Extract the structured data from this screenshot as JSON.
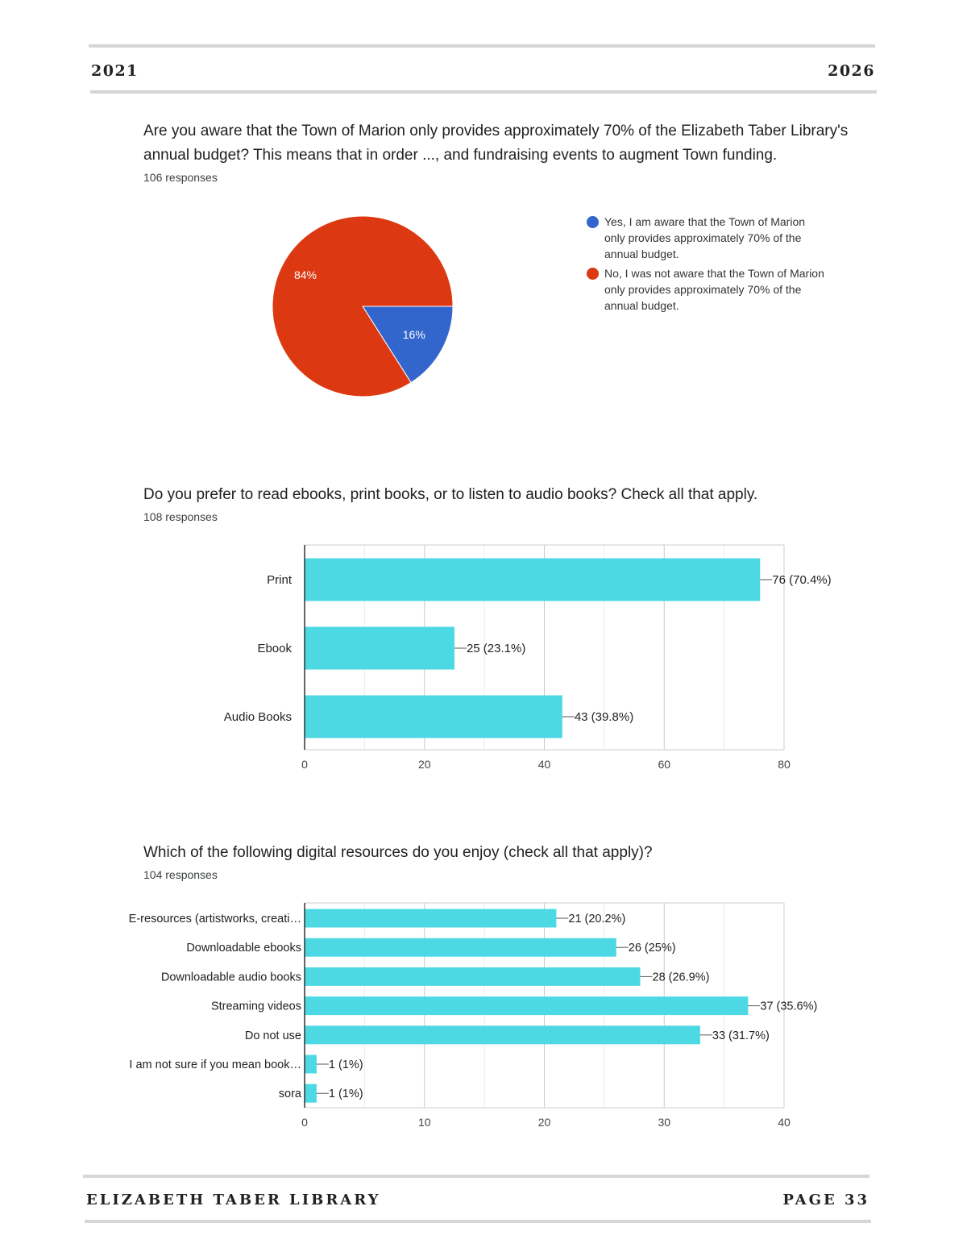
{
  "header": {
    "left": "2021",
    "right": "2026"
  },
  "footer": {
    "left": "ELIZABETH TABER LIBRARY",
    "right": "PAGE 33"
  },
  "questions": [
    {
      "title": "Are you aware that the Town of Marion only provides approximately 70% of the Elizabeth Taber Library's annual budget? This means that in order ..., and fundraising events to augment Town funding.",
      "responses": "106 responses"
    },
    {
      "title": "Do you prefer to read ebooks, print books, or to listen to audio books? Check all that apply.",
      "responses": "108 responses"
    },
    {
      "title": "Which of the following digital resources do you enjoy (check all that apply)?",
      "responses": "104 responses"
    }
  ],
  "chart_data": [
    {
      "type": "pie",
      "slices": [
        {
          "label": "Yes, I am aware that the Town of Marion only provides approximately 70% of the annual budget.",
          "value": 16,
          "display": "16%",
          "color": "#3366cc"
        },
        {
          "label": "No, I was not aware that the Town of Marion only provides approximately 70% of the annual budget.",
          "value": 84,
          "display": "84%",
          "color": "#dc3912"
        }
      ],
      "legend_position": "right"
    },
    {
      "type": "bar",
      "orientation": "horizontal",
      "categories": [
        "Print",
        "Ebook",
        "Audio Books"
      ],
      "values": [
        76,
        25,
        43
      ],
      "labels": [
        "76 (70.4%)",
        "25 (23.1%)",
        "43 (39.8%)"
      ],
      "xlim": [
        0,
        80
      ],
      "ticks": [
        0,
        20,
        40,
        60,
        80
      ],
      "grid": true,
      "color": "#4dd9e3"
    },
    {
      "type": "bar",
      "orientation": "horizontal",
      "categories": [
        "E-resources (artistworks, creati…",
        "Downloadable ebooks",
        "Downloadable audio books",
        "Streaming videos",
        "Do not use",
        "I am not sure if you mean book…",
        "sora"
      ],
      "values": [
        21,
        26,
        28,
        37,
        33,
        1,
        1
      ],
      "labels": [
        "21 (20.2%)",
        "26 (25%)",
        "28 (26.9%)",
        "37 (35.6%)",
        "33 (31.7%)",
        "1 (1%)",
        "1 (1%)"
      ],
      "xlim": [
        0,
        40
      ],
      "ticks": [
        0,
        10,
        20,
        30,
        40
      ],
      "grid": true,
      "color": "#4dd9e3"
    }
  ]
}
